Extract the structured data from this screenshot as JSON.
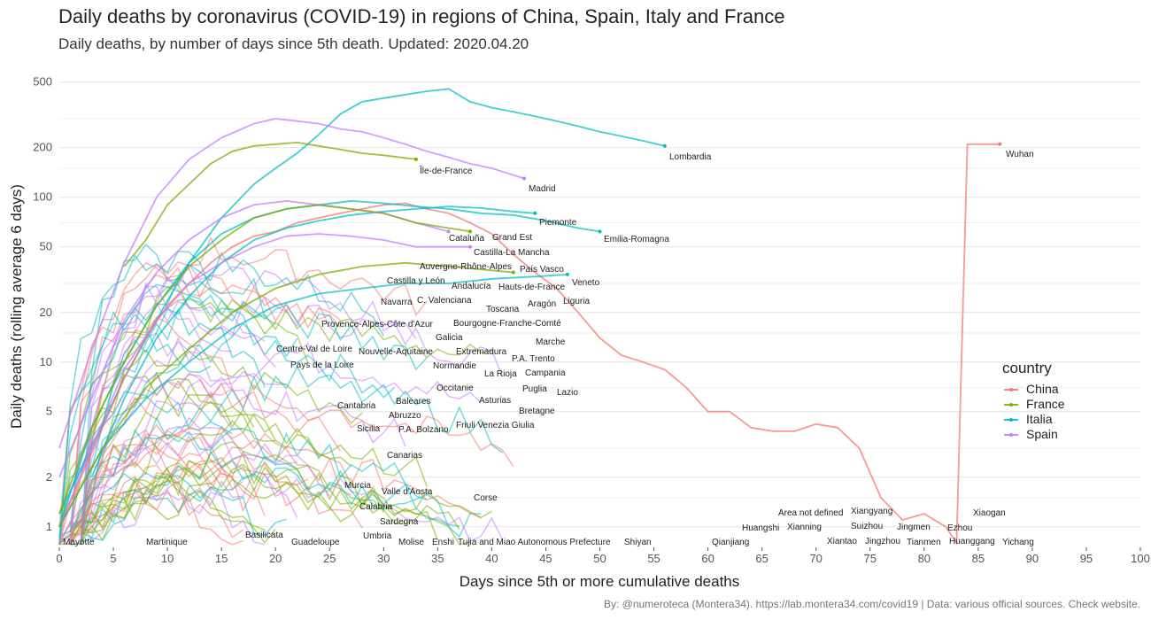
{
  "title": "Daily deaths by coronavirus (COVID-19) in regions of China, Spain, Italy and France",
  "subtitle": "Daily deaths, by number of days since 5th death. Updated: 2020.04.20",
  "caption": "By: @numeroteca (Montera34). https://lab.montera34.com/covid19 | Data: various official sources. Check website.",
  "colors": {
    "China": "#f8766d",
    "France": "#7cae00",
    "Italia": "#00bfc4",
    "Spain": "#c77cff"
  },
  "chart_data": {
    "type": "line",
    "xlabel": "Days since 5th or more cumulative deaths",
    "ylabel": "Daily deaths (rolling average 6 days)",
    "xlim": [
      0,
      100
    ],
    "ylim": [
      0.75,
      600
    ],
    "y_scale": "log",
    "x_ticks": [
      0,
      5,
      10,
      15,
      20,
      25,
      30,
      35,
      40,
      45,
      50,
      55,
      60,
      65,
      70,
      75,
      80,
      85,
      90,
      95,
      100
    ],
    "y_ticks": [
      1,
      2,
      5,
      10,
      20,
      50,
      100,
      200,
      500
    ],
    "grid": true,
    "legend": {
      "title": "country",
      "position": "right",
      "entries": [
        "China",
        "France",
        "Italia",
        "Spain"
      ]
    },
    "series": [
      {
        "name": "Lombardia",
        "country": "Italia",
        "x": [
          0,
          3,
          6,
          9,
          12,
          15,
          18,
          20,
          22,
          24,
          26,
          28,
          30,
          32,
          34,
          36,
          38,
          40,
          42,
          44,
          46,
          48,
          50,
          52,
          54,
          56
        ],
        "y": [
          1.2,
          3,
          8,
          18,
          40,
          75,
          120,
          150,
          185,
          240,
          320,
          380,
          400,
          420,
          440,
          455,
          380,
          350,
          330,
          310,
          290,
          270,
          250,
          235,
          220,
          205
        ]
      },
      {
        "name": "Wuhan",
        "country": "China",
        "x": [
          0,
          2,
          4,
          6,
          8,
          10,
          12,
          14,
          16,
          18,
          20,
          22,
          24,
          26,
          28,
          30,
          32,
          34,
          36,
          38,
          40,
          42,
          44,
          46,
          48,
          50,
          52,
          54,
          56,
          58,
          60,
          62,
          64,
          66,
          68,
          70,
          72,
          74,
          76,
          78,
          80,
          82,
          83,
          84,
          86,
          87
        ],
        "y": [
          1,
          2,
          4,
          8,
          14,
          22,
          30,
          40,
          50,
          58,
          62,
          70,
          75,
          80,
          85,
          90,
          92,
          85,
          80,
          70,
          60,
          45,
          35,
          28,
          20,
          14,
          11,
          10,
          9,
          7,
          5,
          5,
          4,
          3.8,
          3.8,
          4.2,
          4,
          3,
          1.5,
          1.1,
          1.2,
          1,
          0.8,
          210,
          210,
          210
        ]
      },
      {
        "name": "Madrid",
        "country": "Spain",
        "x": [
          0,
          3,
          6,
          9,
          12,
          15,
          18,
          20,
          22,
          24,
          26,
          28,
          30,
          32,
          34,
          36,
          38,
          40,
          43
        ],
        "y": [
          3,
          12,
          40,
          100,
          170,
          230,
          280,
          300,
          290,
          280,
          260,
          250,
          230,
          210,
          190,
          175,
          160,
          150,
          130
        ]
      },
      {
        "name": "Île-de-France",
        "country": "France",
        "x": [
          6,
          8,
          10,
          12,
          14,
          16,
          18,
          20,
          22,
          24,
          26,
          28,
          30,
          33
        ],
        "y": [
          38,
          55,
          90,
          120,
          160,
          190,
          205,
          210,
          215,
          205,
          195,
          185,
          180,
          170
        ]
      },
      {
        "name": "Piemonte",
        "country": "Italia",
        "x": [
          3,
          6,
          9,
          12,
          15,
          18,
          21,
          24,
          27,
          30,
          33,
          36,
          39,
          42,
          44
        ],
        "y": [
          2,
          6,
          14,
          25,
          40,
          55,
          65,
          72,
          78,
          82,
          85,
          88,
          86,
          82,
          80
        ]
      },
      {
        "name": "Emilia-Romagna",
        "country": "Italia",
        "x": [
          0,
          3,
          6,
          9,
          12,
          15,
          18,
          21,
          24,
          27,
          30,
          33,
          36,
          39,
          42,
          45,
          48,
          50
        ],
        "y": [
          1,
          4,
          10,
          22,
          40,
          60,
          75,
          85,
          90,
          95,
          92,
          88,
          85,
          80,
          78,
          72,
          65,
          62
        ]
      },
      {
        "name": "Cataluña",
        "country": "Spain",
        "x": [
          0,
          3,
          6,
          9,
          12,
          15,
          18,
          21,
          24,
          27,
          30,
          33,
          36
        ],
        "y": [
          2,
          6,
          18,
          35,
          55,
          75,
          90,
          95,
          90,
          85,
          80,
          70,
          62
        ]
      },
      {
        "name": "Grand Est",
        "country": "France",
        "x": [
          0,
          3,
          6,
          9,
          12,
          15,
          18,
          21,
          24,
          27,
          30,
          33,
          36,
          38
        ],
        "y": [
          1.2,
          4,
          10,
          22,
          38,
          55,
          75,
          85,
          90,
          85,
          80,
          70,
          65,
          62
        ]
      },
      {
        "name": "Castilla-La Mancha",
        "country": "Spain",
        "x": [
          0,
          3,
          6,
          9,
          12,
          15,
          18,
          21,
          24,
          27,
          30,
          33,
          36,
          38
        ],
        "y": [
          1,
          3,
          9,
          18,
          30,
          40,
          50,
          58,
          60,
          58,
          55,
          50,
          50,
          50
        ]
      },
      {
        "name": "Veneto",
        "country": "Italia",
        "x": [
          0,
          4,
          8,
          12,
          16,
          20,
          24,
          28,
          32,
          36,
          40,
          44,
          47
        ],
        "y": [
          1,
          3,
          6,
          10,
          16,
          22,
          26,
          28,
          30,
          30,
          32,
          33,
          34
        ]
      },
      {
        "name": "Auvergne-Rhône-Alpes",
        "country": "France",
        "x": [
          0,
          4,
          8,
          12,
          16,
          20,
          24,
          28,
          32,
          36,
          40,
          42
        ],
        "y": [
          1,
          3,
          7,
          12,
          20,
          28,
          34,
          38,
          40,
          38,
          36,
          35
        ]
      }
    ],
    "annotations": [
      "Lombardia",
      "Wuhan",
      "Île-de-France",
      "Madrid",
      "Piemonte",
      "Emilia-Romagna",
      "Cataluña",
      "Grand Est",
      "Castilla-La Mancha",
      "Auvergne-Rhône-Alpes",
      "País Vasco",
      "Veneto",
      "Castilla y León",
      "Andalucía",
      "Hauts-de-France",
      "Navarra",
      "C. Valenciana",
      "Liguria",
      "Aragón",
      "Toscana",
      "Provence-Alpes-Côte d'Azur",
      "Bourgogne-Franche-Comté",
      "Galicia",
      "Marche",
      "Centre-Val de Loire",
      "Nouvelle-Aquitaine",
      "Extremadura",
      "P.A. Trento",
      "Pays de la Loire",
      "Normandie",
      "La Rioja",
      "Campania",
      "Puglia",
      "Occitanie",
      "Lazio",
      "Asturias",
      "Baleares",
      "Bretagne",
      "Cantabria",
      "Abruzzo",
      "Friuli Venezia Giulia",
      "Sicilia",
      "P.A. Bolzano",
      "Canarias",
      "Murcia",
      "Valle d'Aosta",
      "Corse",
      "Calabria",
      "Sardegna",
      "Umbria",
      "Molise",
      "Enshi",
      "Tujia and Miao Autonomous Prefecture",
      "Shiyan",
      "Qianjiang",
      "Huangshi",
      "Xianning",
      "Area not defined",
      "Xiantao",
      "Xiangyang",
      "Suizhou",
      "Jingzhou",
      "Jingmen",
      "Tianmen",
      "Ezhou",
      "Huanggang",
      "Xiaogan",
      "Yichang",
      "Mayotte",
      "Martinique",
      "Basilicata",
      "Guadeloupe"
    ]
  }
}
